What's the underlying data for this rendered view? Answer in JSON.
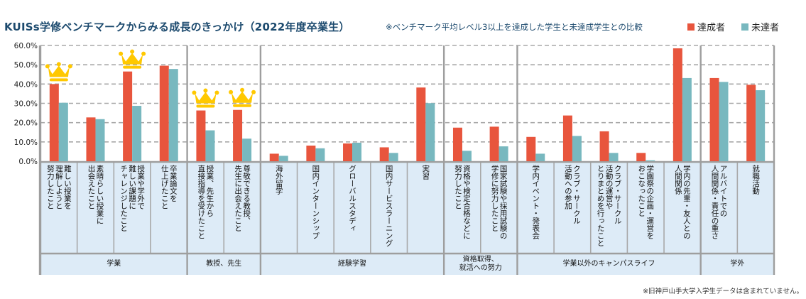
{
  "title": "KUISs学修ベンチマークからみる成長のきっかけ（2022年度卒業生）",
  "subtitle": "※ベンチマーク平均レベル3以上を達成した学生と未達成学生との比較",
  "footnote": "※旧神戸山手大学入学生データは含まれていません。",
  "colors": {
    "achieved": "#E8553D",
    "not_achieved": "#78B8BF",
    "title": "#1c4a6e",
    "label_bg": "#DDEBF7",
    "crown": "#FFC800"
  },
  "chart_data": {
    "type": "bar",
    "title": "KUISs学修ベンチマークからみる成長のきっかけ（2022年度卒業生）",
    "ylabel": "",
    "xlabel": "",
    "ylim": [
      0,
      60
    ],
    "yticks": [
      "0.0%",
      "10.0%",
      "20.0%",
      "30.0%",
      "40.0%",
      "50.0%",
      "60.0%"
    ],
    "ytick_values": [
      0,
      10,
      20,
      30,
      40,
      50,
      60
    ],
    "grid": true,
    "legend_position": "top-right",
    "categories": [
      "難しい授業を\n理解しようと\n努力したこと",
      "素晴らしい授業に\n出会えたこと",
      "授業や学外で\n難しい課題に\nチャレンジしたこと",
      "卒業論文を\n仕上げたこと",
      "授業、先生から\n直接指導を受けたこと",
      "尊敬できる教授、\n先生に出会えたこと",
      "海外留学",
      "国内インターンシップ",
      "グローバルスタディ",
      "国内サービスラーニング",
      "実習",
      "資格や検定合格などに\n努力したこと",
      "国家試験や採用試験の\n学修に努力したこと",
      "学内イベント・発表会",
      "クラブ・サークル\n活動への参加",
      "クラブ・サークル\n活動の運営や\nとりまとめを行ったこと",
      "学園祭の企画・運営を\nおこなったこと",
      "学内の先輩・友人との\n人間関係",
      "アルバイトでの\n人間関係・責任の重さ",
      "就職活動"
    ],
    "groups": [
      {
        "label": "学業",
        "span": 4
      },
      {
        "label": "教授、先生",
        "span": 2
      },
      {
        "label": "経験学習",
        "span": 5
      },
      {
        "label": "資格取得、\n就活への努力",
        "span": 2
      },
      {
        "label": "学業以外のキャンパスライフ",
        "span": 5
      },
      {
        "label": "学外",
        "span": 2
      }
    ],
    "crowned_categories": [
      0,
      2,
      4,
      5
    ],
    "series": [
      {
        "name": "達成者",
        "values": [
          40.0,
          22.7,
          46.5,
          49.5,
          26.3,
          26.6,
          3.9,
          8.1,
          9.2,
          7.2,
          38.2,
          17.4,
          17.9,
          12.6,
          23.7,
          15.5,
          4.3,
          58.5,
          43.1,
          39.6
        ]
      },
      {
        "name": "未達者",
        "values": [
          30.3,
          21.8,
          28.7,
          47.8,
          16.0,
          11.7,
          2.8,
          6.7,
          9.6,
          4.3,
          30.1,
          5.4,
          7.7,
          3.9,
          13.1,
          4.3,
          0.5,
          43.1,
          41.1,
          36.8
        ]
      }
    ]
  }
}
